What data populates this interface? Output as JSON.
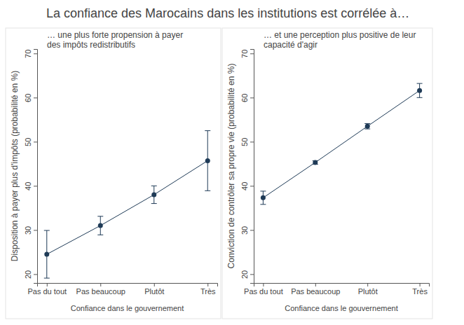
{
  "title": "La confiance des Marocains dans les institutions est corrélée à…",
  "chart_data": [
    {
      "type": "line",
      "subtitle": [
        "… une plus forte propension à payer",
        "des impôts redistributifs"
      ],
      "x_label": "Confiance dans le gouvernement",
      "y_label": "Disposition à payer plus d'impôts (probabilité en %)",
      "categories": [
        "Pas du tout",
        "Pas beaucoup",
        "Plutôt",
        "Très"
      ],
      "values": [
        24.5,
        31,
        38,
        45.7
      ],
      "errors": [
        5.4,
        2.1,
        2,
        6.8
      ],
      "ylim": [
        18,
        71
      ],
      "yticks": [
        20,
        30,
        40,
        50,
        60,
        70
      ],
      "color": "#1f3b57",
      "marker": "circle"
    },
    {
      "type": "line",
      "subtitle": [
        "… et une perception plus positive de leur",
        "capacité d'agir"
      ],
      "x_label": "Confiance dans le gouvernement",
      "y_label": "Conviction de contrôler sa propre vie (probabilité en %)",
      "categories": [
        "Pas du tout",
        "Pas beaucoup",
        "Plutôt",
        "Très"
      ],
      "values": [
        37.3,
        45.3,
        53.5,
        61.6
      ],
      "errors": [
        1.5,
        0.4,
        0.6,
        1.6
      ],
      "ylim": [
        18,
        71
      ],
      "yticks": [
        20,
        30,
        40,
        50,
        60,
        70
      ],
      "color": "#1f3b57",
      "marker": "circle"
    }
  ]
}
